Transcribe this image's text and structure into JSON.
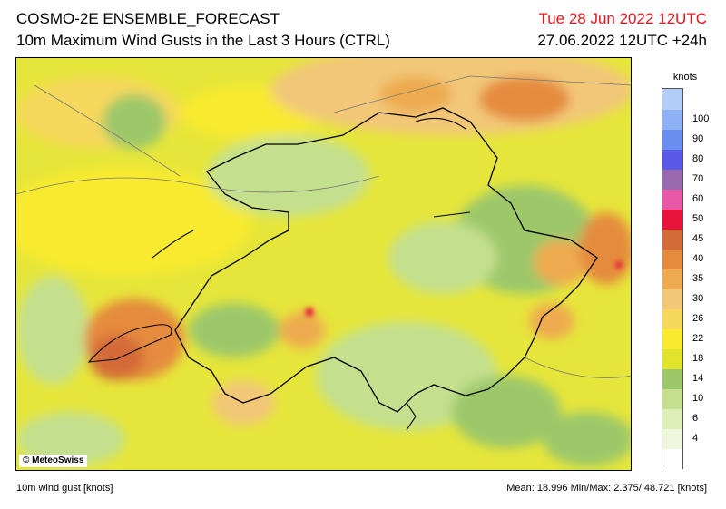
{
  "header": {
    "title": "COSMO-2E ENSEMBLE_FORECAST",
    "subtitle": "10m Maximum Wind Gusts in the Last 3 Hours (CTRL)",
    "valid_time": "Tue 28 Jun 2022 12UTC",
    "run_time": "27.06.2022 12UTC +24h"
  },
  "map": {
    "copyright": "© MeteoSwiss",
    "region": "Switzerland"
  },
  "legend": {
    "unit": "knots",
    "classes": [
      {
        "color": "#ffffff",
        "label": ""
      },
      {
        "color": "#eef6dc",
        "label": "4"
      },
      {
        "color": "#ddeeb8",
        "label": "6"
      },
      {
        "color": "#c4e08e",
        "label": "10"
      },
      {
        "color": "#9cc86a",
        "label": "14"
      },
      {
        "color": "#e0e42a",
        "label": "18"
      },
      {
        "color": "#f8ea2e",
        "label": "22"
      },
      {
        "color": "#f6d85c",
        "label": "26"
      },
      {
        "color": "#f2c878",
        "label": "30"
      },
      {
        "color": "#eeaa50",
        "label": "35"
      },
      {
        "color": "#e58b3e",
        "label": "40"
      },
      {
        "color": "#d46a38",
        "label": "45"
      },
      {
        "color": "#e8143c",
        "label": "50"
      },
      {
        "color": "#e85aa8",
        "label": "60"
      },
      {
        "color": "#9a6ab0",
        "label": "70"
      },
      {
        "color": "#5a5ae8",
        "label": "80"
      },
      {
        "color": "#6a8ef0",
        "label": "90"
      },
      {
        "color": "#8eb0f4",
        "label": "100"
      },
      {
        "color": "#b4ccf8",
        "label": ""
      }
    ]
  },
  "footer": {
    "variable": "10m wind gust [knots]",
    "stats": "Mean:  18.996 Min/Max:   2.375/  48.721 [knots]"
  }
}
